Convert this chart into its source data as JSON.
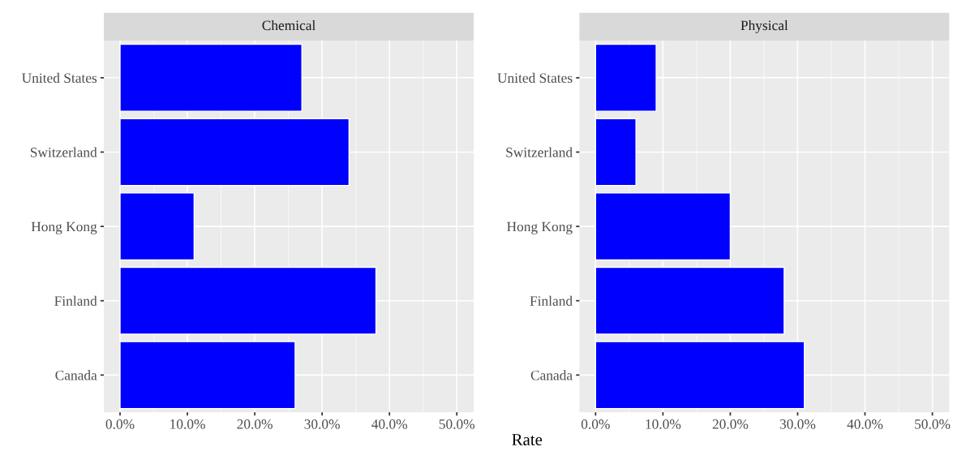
{
  "chart_data": [
    {
      "type": "bar",
      "orientation": "horizontal",
      "title": "Chemical",
      "xlabel": "Rate",
      "categories": [
        "United States",
        "Switzerland",
        "Hong Kong",
        "Finland",
        "Canada"
      ],
      "series": [
        {
          "color": "#0000ff",
          "values": [
            27,
            34,
            11,
            38,
            26
          ]
        }
      ],
      "xlim": [
        -2.4,
        52.5
      ],
      "xticks": [
        {
          "value": 0,
          "label": "0.0%"
        },
        {
          "value": 10,
          "label": "10.0%"
        },
        {
          "value": 20,
          "label": "20.0%"
        },
        {
          "value": 30,
          "label": "30.0%"
        },
        {
          "value": 40,
          "label": "40.0%"
        },
        {
          "value": 50,
          "label": "50.0%"
        }
      ],
      "grid": true
    },
    {
      "type": "bar",
      "orientation": "horizontal",
      "title": "Physical",
      "categories": [
        "United States",
        "Switzerland",
        "Hong Kong",
        "Finland",
        "Canada"
      ],
      "series": [
        {
          "color": "#0000ff",
          "values": [
            9,
            6,
            20,
            28,
            31
          ]
        }
      ],
      "xlim": [
        -2.4,
        52.5
      ],
      "xticks": [
        {
          "value": 0,
          "label": "0.0%"
        },
        {
          "value": 10,
          "label": "10.0%"
        },
        {
          "value": 20,
          "label": "20.0%"
        },
        {
          "value": 30,
          "label": "30.0%"
        },
        {
          "value": 40,
          "label": "40.0%"
        },
        {
          "value": 50,
          "label": "50.0%"
        }
      ],
      "grid": true
    }
  ]
}
